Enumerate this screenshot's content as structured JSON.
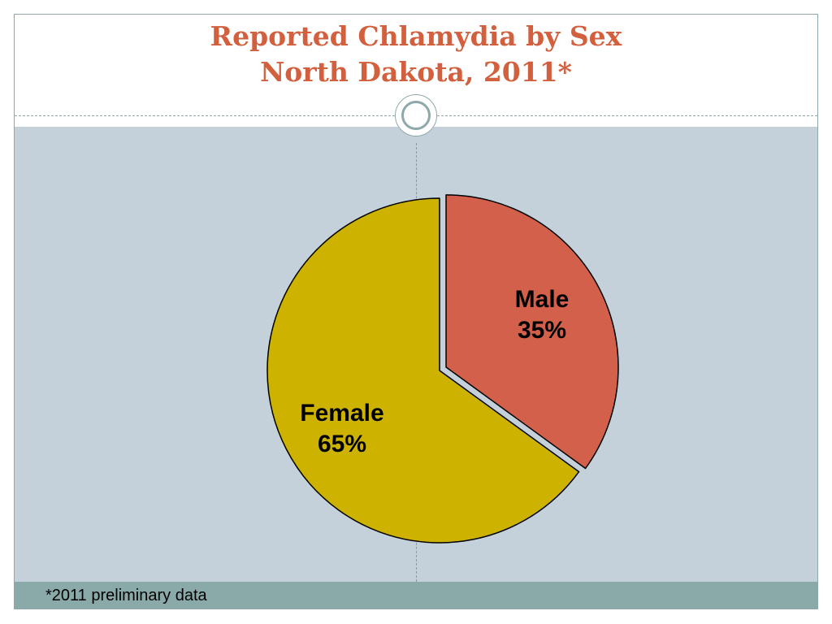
{
  "title": {
    "line1": "Reported Chlamydia by Sex",
    "line2": "North Dakota, 2011*"
  },
  "footnote": "*2011 preliminary data",
  "colors": {
    "title": "#d2603f",
    "background": "#c5d1da",
    "footer": "#8aaaa9",
    "male": "#d2604a",
    "female": "#cdb300"
  },
  "chart_data": {
    "type": "pie",
    "categories": [
      "Male",
      "Female"
    ],
    "values": [
      35,
      65
    ],
    "labels": [
      {
        "name": "Male",
        "percent": "35%"
      },
      {
        "name": "Female",
        "percent": "65%"
      }
    ],
    "exploded": "Male",
    "start": "top, clockwise"
  }
}
